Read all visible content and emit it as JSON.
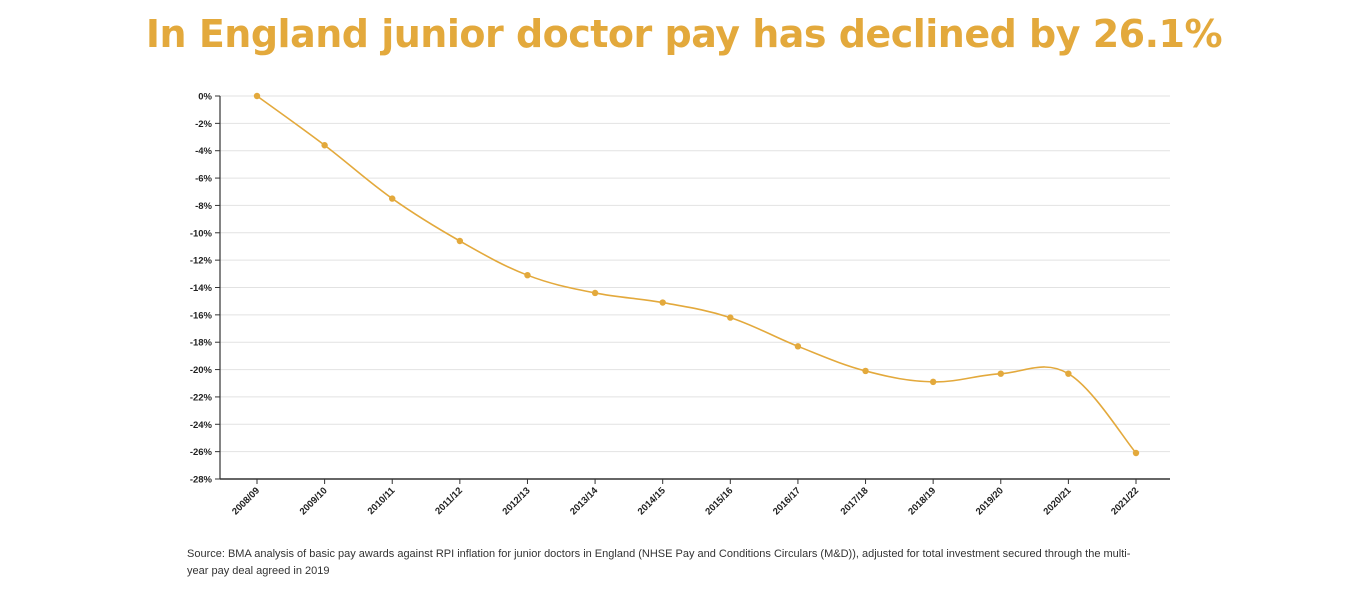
{
  "chart_data": {
    "type": "line",
    "title": "In England junior doctor pay has declined by 26.1%",
    "xlabel": "",
    "ylabel": "",
    "categories": [
      "2008/09",
      "2009/10",
      "2010/11",
      "2011/12",
      "2012/13",
      "2013/14",
      "2014/15",
      "2015/16",
      "2016/17",
      "2017/18",
      "2018/19",
      "2019/20",
      "2020/21",
      "2021/22"
    ],
    "values": [
      0,
      -3.6,
      -7.5,
      -10.6,
      -13.1,
      -14.4,
      -15.1,
      -16.2,
      -18.3,
      -20.1,
      -20.9,
      -20.3,
      -20.3,
      -26.1
    ],
    "ylim": [
      -28,
      0
    ],
    "yticks": [
      0,
      -2,
      -4,
      -6,
      -8,
      -10,
      -12,
      -14,
      -16,
      -18,
      -20,
      -22,
      -24,
      -26,
      -28
    ],
    "ytick_suffix": "%",
    "grid": true,
    "line_color": "#e3a93c",
    "axis_color": "#333333",
    "grid_color": "#e2e2e2"
  },
  "source_note": "Source: BMA analysis of basic pay awards against RPI inflation for junior doctors in England (NHSE Pay and Conditions Circulars (M&D)), adjusted for total investment secured through the multi-year pay deal agreed in 2019"
}
